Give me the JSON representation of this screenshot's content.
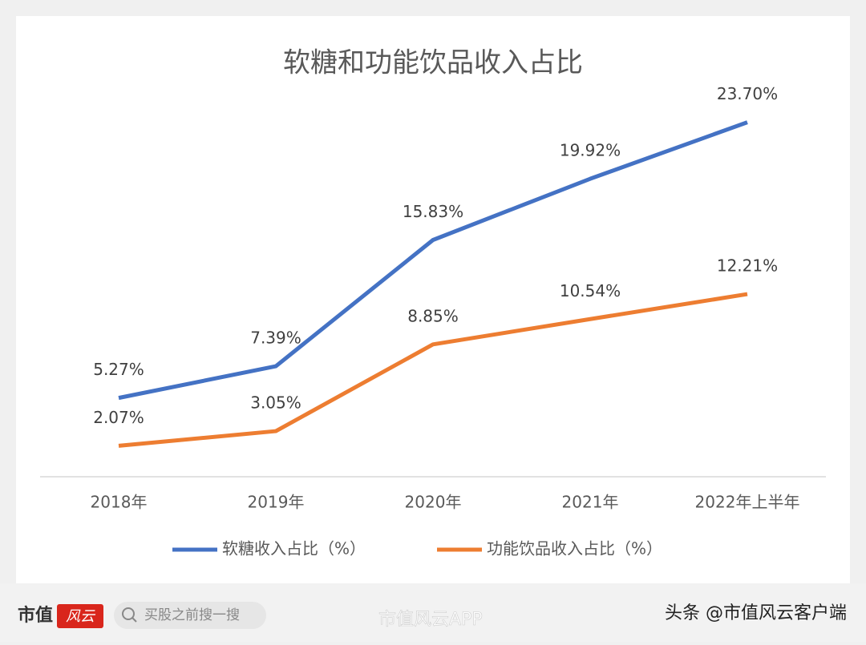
{
  "chart_data": {
    "type": "line",
    "title": "软糖和功能饮品收入占比",
    "categories": [
      "2018年",
      "2019年",
      "2020年",
      "2021年",
      "2022年上半年"
    ],
    "series": [
      {
        "name": "软糖收入占比（%）",
        "color": "#4472c4",
        "values": [
          5.27,
          7.39,
          15.83,
          19.92,
          23.7
        ],
        "value_labels": [
          "5.27%",
          "7.39%",
          "15.83%",
          "19.92%",
          "23.70%"
        ]
      },
      {
        "name": "功能饮品收入占比（%）",
        "color": "#ed7d31",
        "values": [
          2.07,
          3.05,
          8.85,
          10.54,
          12.21
        ],
        "value_labels": [
          "2.07%",
          "3.05%",
          "8.85%",
          "10.54%",
          "12.21%"
        ]
      }
    ],
    "ylim": [
      0,
      30
    ],
    "legend": "bottom"
  },
  "footer": {
    "logo_left": "市值",
    "logo_right": "风云",
    "search": "买股之前搜一搜",
    "watermark": "市值风云APP",
    "source": "头条 @市值风云客户端"
  }
}
